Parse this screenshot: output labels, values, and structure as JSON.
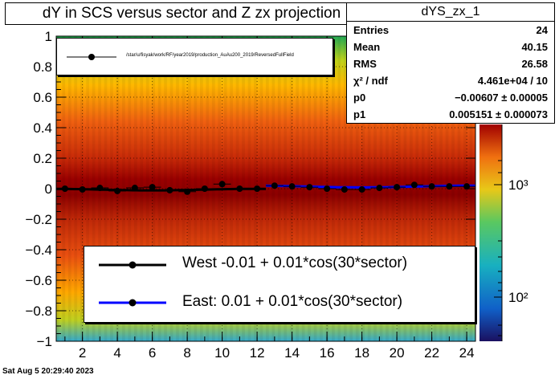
{
  "title": "dY in SCS versus sector and Z zx projection",
  "stats_box": {
    "name": "dYS_zx_1",
    "rows": [
      {
        "label": "Entries",
        "value": "24"
      },
      {
        "label": "Mean",
        "value": "40.15"
      },
      {
        "label": "RMS",
        "value": "26.58"
      },
      {
        "label": "χ² / ndf",
        "value": "4.461e+04 / 10"
      },
      {
        "label": "p0",
        "value": "−0.00607 ± 0.00005"
      },
      {
        "label": "p1",
        "value": "0.005151 ± 0.000073"
      }
    ]
  },
  "footer": "Sat Aug  5 20:29:40 2023",
  "legend_top": {
    "entry": "/star/u/fisyak/work/RF/year2019/production_AuAu200_2019/ReversedFullField"
  },
  "legend_fit": {
    "west": "West -0.01 +  0.01*cos(30*sector)",
    "east": "East:  0.01 +  0.01*cos(30*sector)"
  },
  "colors": {
    "west_line": "#000000",
    "east_line": "#0000ff",
    "marker": "#000000"
  },
  "chart_data": {
    "type": "scatter",
    "xlim": [
      0.5,
      24.5
    ],
    "ylim": [
      -1,
      1
    ],
    "x_ticks": [
      2,
      4,
      6,
      8,
      10,
      12,
      14,
      16,
      18,
      20,
      22,
      24
    ],
    "y_ticks": [
      -1,
      -0.8,
      -0.6,
      -0.4,
      -0.2,
      0,
      0.2,
      0.4,
      0.6,
      0.8,
      1
    ],
    "y_tick_labels": [
      "−1",
      "−0.8",
      "−0.6",
      "−0.4",
      "−0.2",
      "0",
      "0.2",
      "0.4",
      "0.6",
      "0.8",
      "1"
    ],
    "x_tick_labels": [
      "2",
      "4",
      "6",
      "8",
      "10",
      "12",
      "14",
      "16",
      "18",
      "20",
      "22",
      "24"
    ],
    "z_scale": "log",
    "z_tick_labels": [
      "10²",
      "10³"
    ],
    "series": [
      {
        "name": "West",
        "x": [
          1,
          2,
          3,
          4,
          5,
          6,
          7,
          8,
          9,
          10,
          11,
          12
        ],
        "y": [
          0.0,
          -0.005,
          0.005,
          -0.015,
          0.005,
          0.01,
          -0.01,
          -0.02,
          0.0,
          0.03,
          0.0,
          0.0
        ]
      },
      {
        "name": "East",
        "x": [
          13,
          14,
          15,
          16,
          17,
          18,
          19,
          20,
          21,
          22,
          23,
          24
        ],
        "y": [
          0.02,
          0.015,
          0.01,
          0.0,
          -0.005,
          -0.005,
          0.005,
          0.01,
          0.025,
          0.015,
          0.015,
          0.015
        ]
      }
    ],
    "fits": [
      {
        "name": "West",
        "x_range": [
          0.5,
          12.5
        ],
        "p0": -0.00607,
        "p1": 0.005151
      },
      {
        "name": "East",
        "x_range": [
          12.5,
          24.5
        ],
        "p0": 0.014,
        "p1": 0.0055
      }
    ]
  }
}
